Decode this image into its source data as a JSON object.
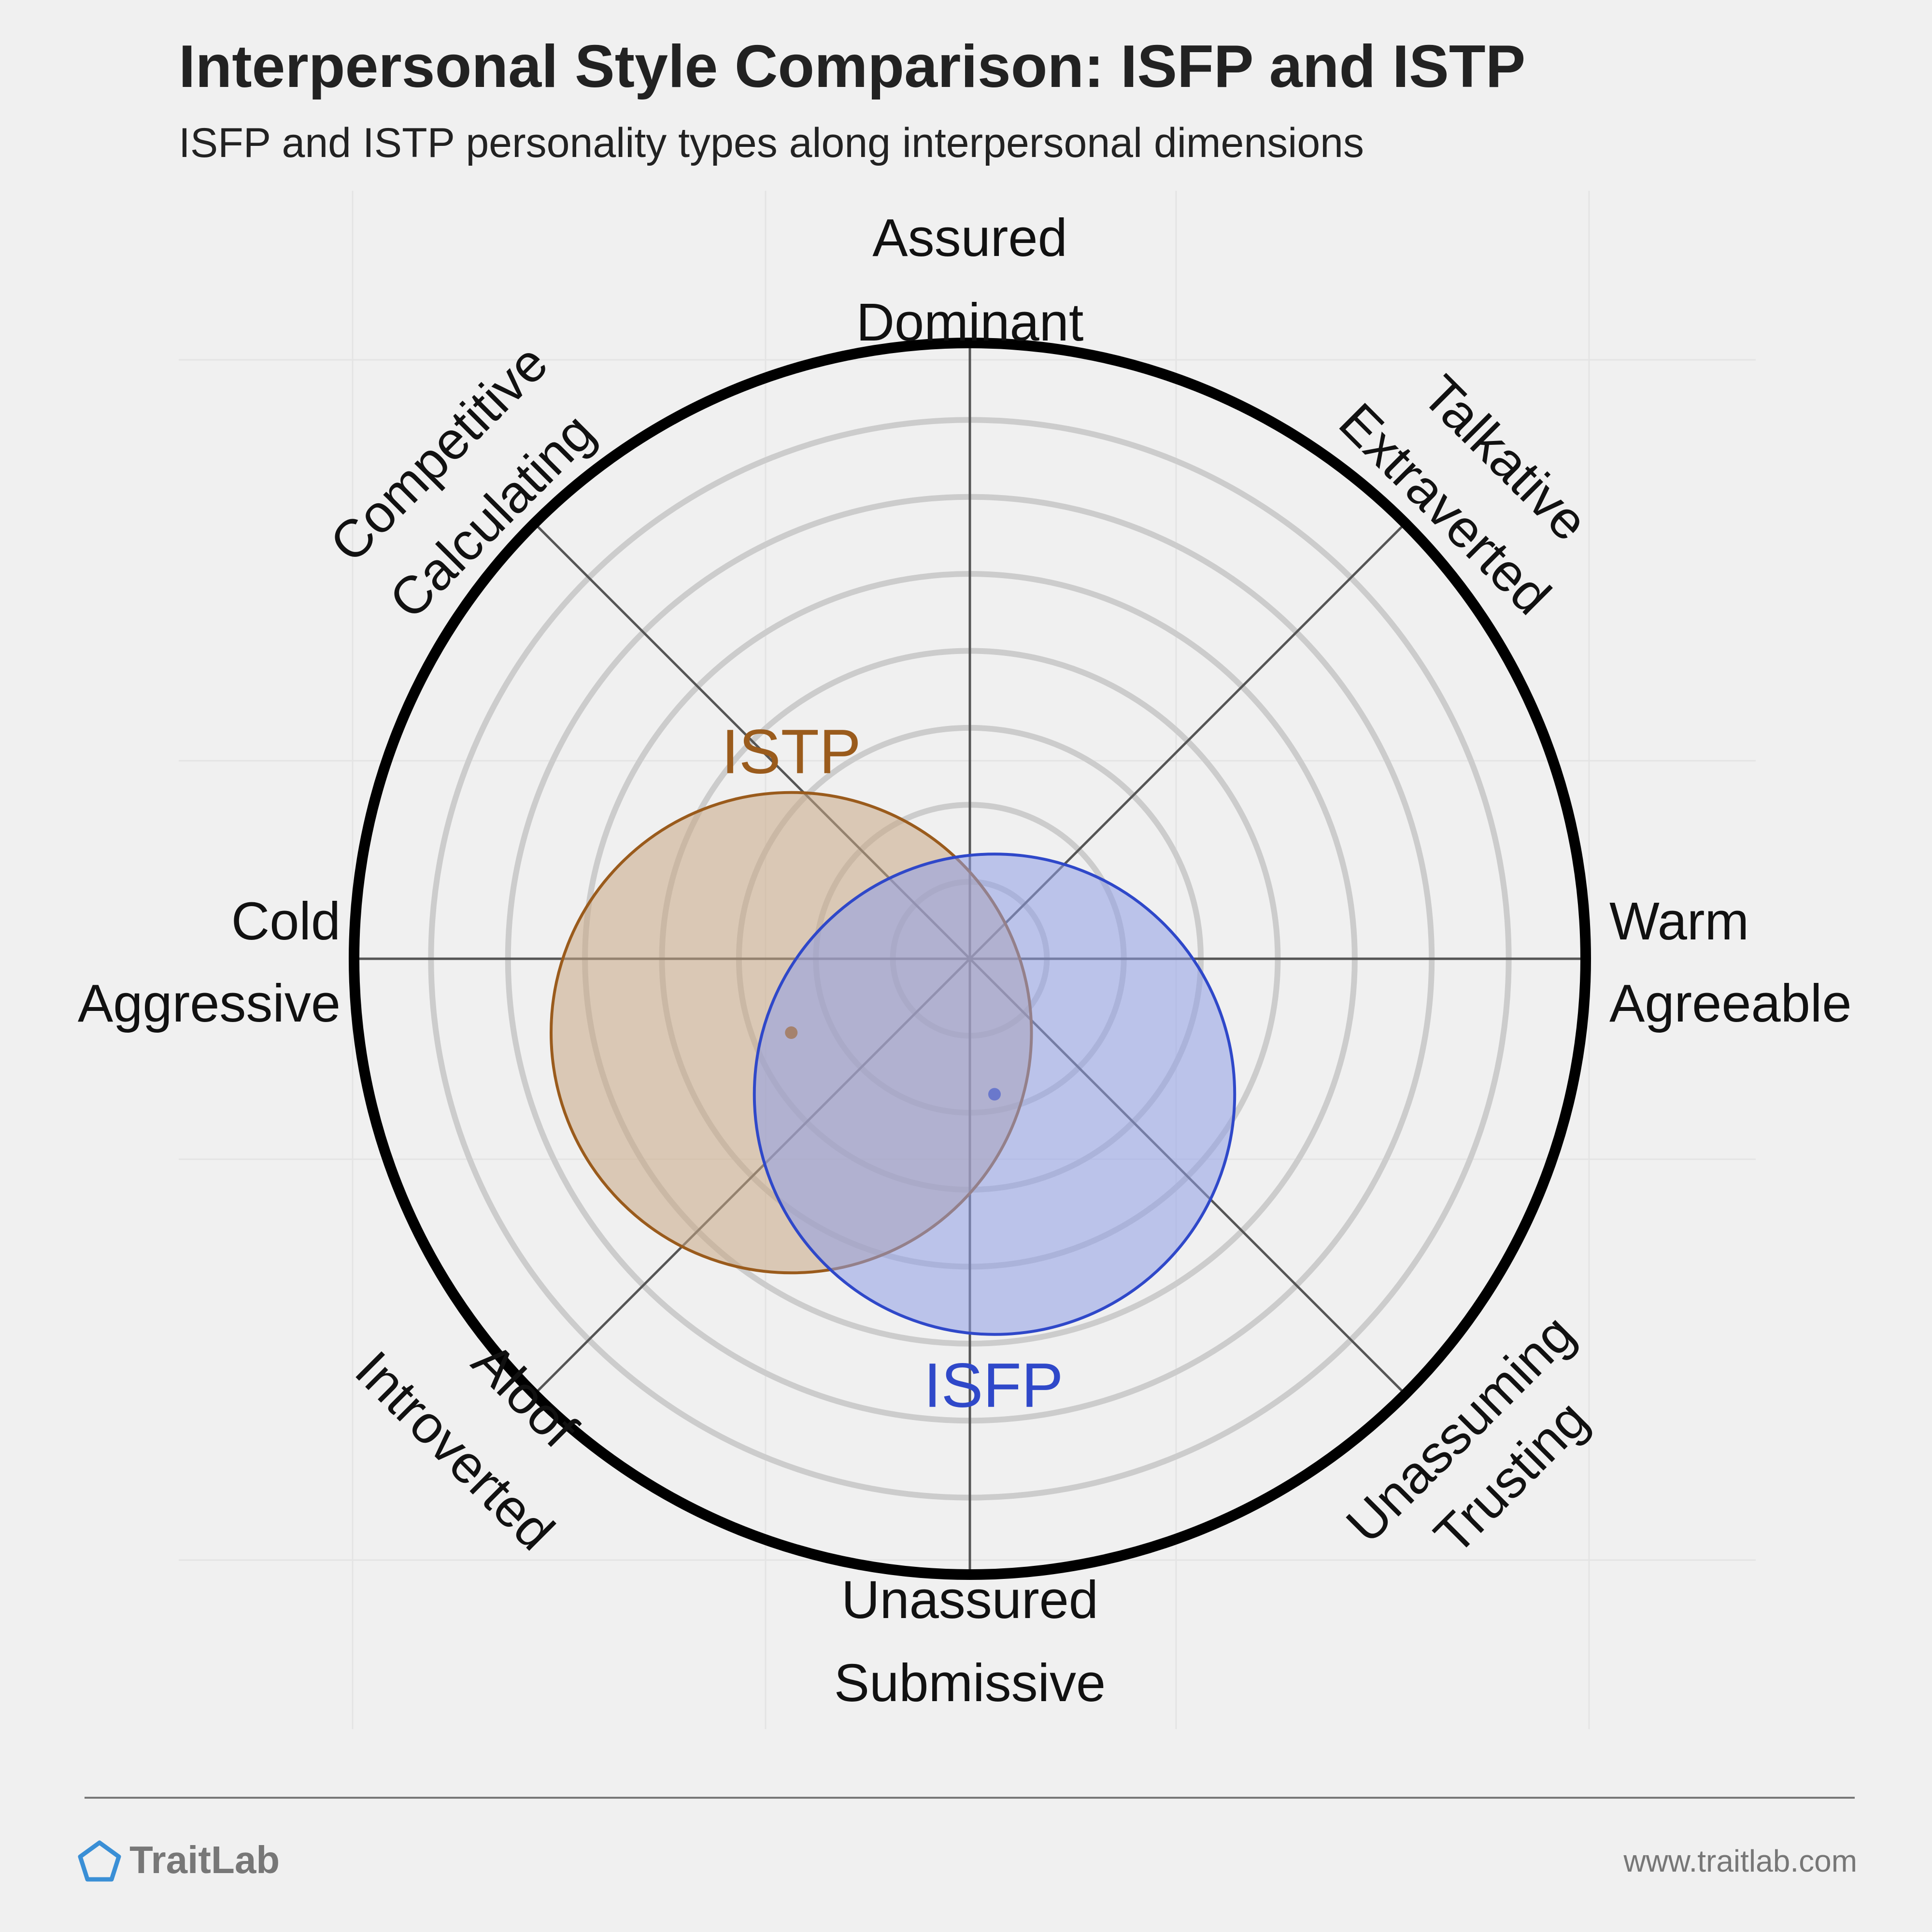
{
  "chart_data": {
    "type": "scatter",
    "title": "Interpersonal Style Comparison: ISFP and ISTP",
    "subtitle": "ISFP and ISTP personality types along interpersonal dimensions",
    "axis_range": [
      -1,
      1
    ],
    "grid": true,
    "axes": {
      "top": [
        "Assured",
        "Dominant"
      ],
      "top_right": [
        "Talkative",
        "Extraverted"
      ],
      "right": [
        "Warm",
        "Agreeable"
      ],
      "bottom_right": [
        "Unassuming",
        "Trusting"
      ],
      "bottom": [
        "Unassured",
        "Submissive"
      ],
      "bottom_left": [
        "Aloof",
        "Introverted"
      ],
      "left": [
        "Cold",
        "Aggressive"
      ],
      "top_left": [
        "Competitive",
        "Calculating"
      ]
    },
    "series": [
      {
        "name": "ISTP",
        "x": -0.29,
        "y": -0.12,
        "spread": 0.39,
        "color": "#9a5b1c",
        "fill": "#c8a885"
      },
      {
        "name": "ISFP",
        "x": 0.04,
        "y": -0.22,
        "spread": 0.39,
        "color": "#2f48c9",
        "fill": "#8f9fe6"
      }
    ]
  },
  "footer": {
    "brand": "TraitLab",
    "url": "www.traitlab.com",
    "brand_color": "#3a8fd6"
  }
}
